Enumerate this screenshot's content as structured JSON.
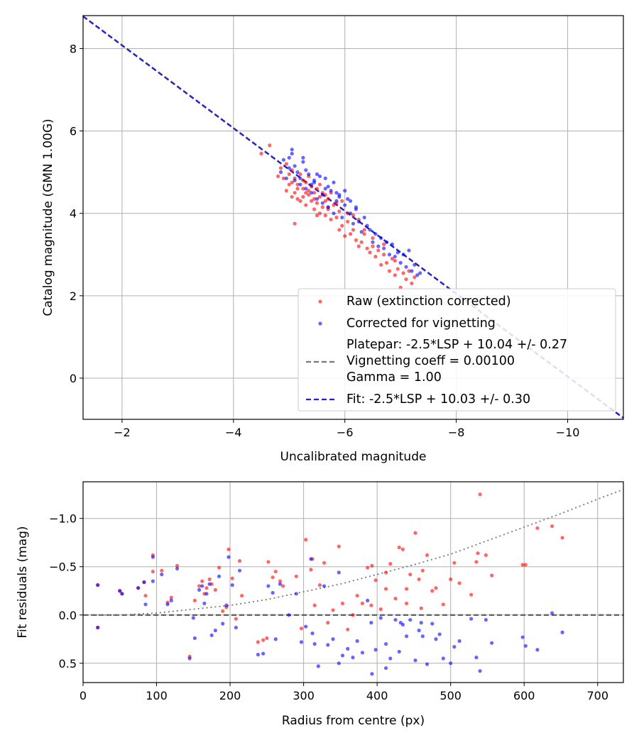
{
  "chart_data": [
    {
      "type": "scatter",
      "xlabel": "Uncalibrated magnitude",
      "ylabel": "Catalog magnitude (GMN 1.00G)",
      "xlim": [
        -1.3,
        -11.0
      ],
      "ylim": [
        8.8,
        -1.0
      ],
      "xticks": [
        -2,
        -4,
        -6,
        -8,
        -10
      ],
      "xtick_labels": [
        "−2",
        "−4",
        "−6",
        "−8",
        "−10"
      ],
      "yticks": [
        0,
        2,
        4,
        6,
        8
      ],
      "ytick_labels": [
        "0",
        "2",
        "4",
        "6",
        "8"
      ],
      "grid": true,
      "legend_position": "lower-right",
      "legend": [
        {
          "label": "Raw (extinction corrected)",
          "kind": "dot",
          "color": "#ff0000"
        },
        {
          "label": "Corrected for vignetting",
          "kind": "dot",
          "color": "#0000ff"
        },
        {
          "label": "Platepar: -2.5*LSP + 10.04 +/- 0.27",
          "label2": "Vignetting coeff = 0.00100",
          "label3": "Gamma = 1.00",
          "kind": "dashed",
          "color": "#777777"
        },
        {
          "label": "Fit: -2.5*LSP + 10.03 +/- 0.30",
          "kind": "dashed",
          "color": "#2222cc"
        }
      ],
      "lines": [
        {
          "name": "Platepar",
          "x": [
            -1.3,
            -11.0
          ],
          "y": [
            8.79,
            -0.96
          ],
          "color": "#777777",
          "style": "dashed"
        },
        {
          "name": "Fit",
          "x": [
            -1.3,
            -11.0
          ],
          "y": [
            8.78,
            -0.97
          ],
          "color": "#2222cc",
          "style": "dashed"
        }
      ],
      "series": [
        {
          "name": "Raw (extinction corrected)",
          "color": "#ff0000",
          "x": [
            -4.5,
            -4.65,
            -4.8,
            -4.85,
            -4.9,
            -4.95,
            -5.0,
            -5.0,
            -5.05,
            -5.05,
            -5.1,
            -5.1,
            -5.15,
            -5.15,
            -5.2,
            -5.2,
            -5.25,
            -5.25,
            -5.3,
            -5.3,
            -5.35,
            -5.35,
            -5.4,
            -5.4,
            -5.45,
            -5.45,
            -5.5,
            -5.5,
            -5.55,
            -5.55,
            -5.6,
            -5.6,
            -5.65,
            -5.65,
            -5.7,
            -5.7,
            -5.75,
            -5.8,
            -5.85,
            -5.9,
            -5.95,
            -6.0,
            -6.05,
            -6.1,
            -6.15,
            -6.2,
            -6.25,
            -6.3,
            -6.35,
            -6.4,
            -6.45,
            -6.5,
            -6.55,
            -6.6,
            -6.65,
            -6.7,
            -6.75,
            -6.8,
            -6.85,
            -6.9,
            -6.95,
            -7.0,
            -7.05,
            -7.1,
            -7.15,
            -7.2,
            -7.25,
            -4.95,
            -5.05,
            -5.15,
            -5.25,
            -5.35,
            -5.45,
            -5.55,
            -5.65,
            -5.75,
            -5.85,
            -5.95,
            -6.05,
            -6.15,
            -6.25,
            -6.35,
            -6.5,
            -6.7,
            -6.9,
            -5.1,
            -5.3,
            -5.5,
            -5.7,
            -5.9
          ],
          "y": [
            5.45,
            5.65,
            4.9,
            5.1,
            4.85,
            5.2,
            4.7,
            4.95,
            4.4,
            5.05,
            4.5,
            4.85,
            4.35,
            4.7,
            4.3,
            4.95,
            4.6,
            4.4,
            4.2,
            4.75,
            4.45,
            4.9,
            4.3,
            4.65,
            4.1,
            4.5,
            4.25,
            4.6,
            4.0,
            4.4,
            4.15,
            4.5,
            3.95,
            4.3,
            4.1,
            4.35,
            3.85,
            4.2,
            3.9,
            4.05,
            3.7,
            3.45,
            3.8,
            3.5,
            3.6,
            3.35,
            3.2,
            3.3,
            3.5,
            3.15,
            3.05,
            3.2,
            2.95,
            3.1,
            2.75,
            3.0,
            2.8,
            2.6,
            2.9,
            2.5,
            2.65,
            2.2,
            2.55,
            2.4,
            2.6,
            2.3,
            2.45,
            4.55,
            4.75,
            4.6,
            4.8,
            4.55,
            4.35,
            4.7,
            4.45,
            4.5,
            4.25,
            4.3,
            4.0,
            3.95,
            3.85,
            3.6,
            3.4,
            3.25,
            2.85,
            3.75,
            4.5,
            3.95,
            4.15,
            3.6
          ]
        },
        {
          "name": "Corrected for vignetting",
          "color": "#0000ff",
          "x": [
            -4.85,
            -4.9,
            -4.95,
            -5.0,
            -5.05,
            -5.1,
            -5.15,
            -5.2,
            -5.25,
            -5.3,
            -5.35,
            -5.4,
            -5.45,
            -5.5,
            -5.55,
            -5.6,
            -5.65,
            -5.7,
            -5.75,
            -5.8,
            -5.85,
            -5.9,
            -5.95,
            -6.0,
            -6.05,
            -6.1,
            -6.15,
            -6.2,
            -6.25,
            -6.3,
            -6.35,
            -6.4,
            -6.45,
            -6.5,
            -6.55,
            -6.6,
            -6.65,
            -6.7,
            -6.75,
            -6.8,
            -6.85,
            -6.9,
            -6.95,
            -7.0,
            -7.05,
            -7.1,
            -7.15,
            -7.2,
            -7.25,
            -7.3,
            -7.35,
            -5.0,
            -5.1,
            -5.2,
            -5.3,
            -5.4,
            -5.5,
            -5.6,
            -5.7,
            -5.8,
            -5.9,
            -6.0,
            -6.1,
            -6.2,
            -5.05,
            -5.25,
            -5.45,
            -5.65,
            -5.85
          ],
          "y": [
            5.0,
            5.3,
            4.85,
            5.1,
            5.55,
            4.8,
            5.0,
            4.7,
            5.25,
            4.6,
            4.95,
            4.5,
            4.75,
            4.35,
            4.9,
            4.25,
            4.6,
            4.15,
            4.55,
            4.0,
            4.3,
            4.45,
            3.9,
            4.2,
            4.35,
            4.0,
            3.75,
            4.1,
            3.8,
            3.55,
            3.9,
            3.7,
            3.6,
            3.3,
            3.5,
            3.2,
            3.4,
            3.15,
            3.3,
            3.0,
            3.25,
            2.95,
            3.05,
            2.8,
            3.0,
            2.7,
            3.1,
            2.6,
            2.75,
            2.5,
            2.55,
            5.35,
            5.15,
            4.85,
            5.05,
            4.7,
            4.95,
            4.45,
            4.65,
            4.75,
            4.4,
            4.55,
            4.3,
            4.15,
            5.45,
            5.35,
            4.8,
            4.85,
            4.5
          ]
        }
      ]
    },
    {
      "type": "scatter",
      "xlabel": "Radius from centre (px)",
      "ylabel": "Fit residuals (mag)",
      "xlim": [
        0,
        735
      ],
      "ylim": [
        -1.38,
        0.7
      ],
      "xticks": [
        0,
        100,
        200,
        300,
        400,
        500,
        600,
        700
      ],
      "xtick_labels": [
        "0",
        "100",
        "200",
        "300",
        "400",
        "500",
        "600",
        "700"
      ],
      "yticks": [
        0.5,
        0.0,
        -0.5,
        -1.0
      ],
      "ytick_labels": [
        "0.5",
        "0.0",
        "−0.5",
        "−1.0"
      ],
      "grid": true,
      "lines": [
        {
          "name": "zero",
          "x": [
            0,
            735
          ],
          "y": [
            0,
            0
          ],
          "color": "#555555",
          "style": "dashed"
        },
        {
          "name": "vignetting",
          "x": [
            0,
            50,
            100,
            150,
            200,
            250,
            300,
            350,
            400,
            450,
            500,
            550,
            600,
            650,
            700,
            735
          ],
          "y": [
            0.0,
            0.0,
            -0.02,
            -0.06,
            -0.1,
            -0.16,
            -0.24,
            -0.32,
            -0.42,
            -0.52,
            -0.63,
            -0.77,
            -0.91,
            -1.05,
            -1.2,
            -1.3
          ],
          "color": "#777777",
          "style": "dotted"
        }
      ],
      "series": [
        {
          "name": "Raw",
          "color": "#ff0000",
          "x": [
            20,
            20,
            50,
            53,
            75,
            83,
            85,
            95,
            95,
            107,
            115,
            120,
            128,
            145,
            152,
            158,
            162,
            165,
            168,
            172,
            175,
            180,
            185,
            190,
            195,
            198,
            203,
            208,
            213,
            216,
            238,
            245,
            252,
            258,
            262,
            268,
            272,
            290,
            297,
            303,
            310,
            315,
            322,
            328,
            333,
            340,
            348,
            353,
            360,
            367,
            373,
            380,
            387,
            393,
            398,
            405,
            412,
            418,
            425,
            430,
            435,
            440,
            445,
            452,
            457,
            462,
            468,
            475,
            480,
            490,
            500,
            505,
            512,
            528,
            535,
            540,
            548,
            556,
            598,
            602,
            618,
            638,
            652,
            312,
            392,
            412,
            460,
            537,
            440,
            250
          ],
          "y": [
            0.13,
            -0.31,
            -0.25,
            -0.22,
            -0.28,
            -0.34,
            -0.2,
            -0.45,
            -0.62,
            -0.46,
            -0.13,
            -0.18,
            -0.51,
            0.43,
            -0.15,
            -0.3,
            -0.35,
            -0.22,
            -0.28,
            -0.37,
            -0.32,
            -0.26,
            -0.49,
            -0.04,
            -0.08,
            -0.68,
            -0.38,
            0.04,
            -0.56,
            -0.2,
            0.28,
            0.26,
            -0.55,
            -0.39,
            -0.45,
            -0.35,
            -0.3,
            -0.4,
            0.14,
            -0.78,
            -0.47,
            -0.1,
            -0.31,
            -0.54,
            0.08,
            -0.05,
            -0.71,
            -0.12,
            0.15,
            0.0,
            -0.2,
            -0.12,
            -0.49,
            -0.51,
            -0.36,
            -0.06,
            -0.27,
            -0.53,
            -0.17,
            -0.7,
            -0.68,
            -0.27,
            -0.42,
            -0.85,
            -0.37,
            -0.46,
            -0.62,
            -0.25,
            -0.28,
            -0.11,
            -0.37,
            -0.54,
            -0.33,
            -0.21,
            -0.55,
            -1.25,
            -0.62,
            -0.41,
            -0.52,
            -0.52,
            -0.9,
            -0.92,
            -0.8,
            -0.58,
            -0.1,
            -0.44,
            -0.07,
            -0.64,
            -0.12,
            0.24
          ]
        },
        {
          "name": "Corrected",
          "color": "#0000ff",
          "x": [
            20,
            20,
            50,
            53,
            75,
            83,
            85,
            95,
            95,
            107,
            115,
            120,
            128,
            145,
            152,
            158,
            162,
            165,
            168,
            172,
            175,
            180,
            185,
            190,
            195,
            198,
            203,
            208,
            213,
            238,
            245,
            252,
            258,
            262,
            268,
            290,
            297,
            303,
            310,
            315,
            320,
            328,
            333,
            340,
            348,
            353,
            360,
            367,
            373,
            380,
            387,
            393,
            398,
            405,
            412,
            418,
            425,
            430,
            435,
            440,
            445,
            452,
            457,
            462,
            468,
            475,
            480,
            490,
            500,
            505,
            512,
            528,
            535,
            540,
            548,
            556,
            598,
            602,
            618,
            638,
            652,
            312,
            392,
            412,
            460,
            485,
            432,
            348,
            280,
            150
          ],
          "y": [
            0.13,
            -0.31,
            -0.25,
            -0.22,
            -0.28,
            -0.34,
            -0.11,
            -0.35,
            -0.6,
            -0.42,
            -0.11,
            -0.15,
            -0.48,
            0.45,
            0.24,
            -0.26,
            -0.3,
            -0.12,
            -0.22,
            -0.32,
            0.21,
            0.16,
            -0.4,
            0.09,
            -0.1,
            -0.6,
            -0.31,
            0.13,
            -0.46,
            0.41,
            0.4,
            -0.3,
            -0.23,
            0.25,
            -0.32,
            -0.22,
            0.28,
            0.12,
            -0.58,
            0.3,
            0.53,
            -0.3,
            0.31,
            0.25,
            0.5,
            0.42,
            0.35,
            0.44,
            0.27,
            0.39,
            -0.15,
            0.61,
            0.36,
            0.03,
            0.3,
            0.45,
            0.05,
            0.38,
            0.1,
            0.22,
            0.05,
            0.47,
            0.16,
            0.22,
            0.51,
            0.09,
            0.25,
            0.45,
            0.5,
            0.33,
            0.27,
            0.04,
            0.44,
            0.58,
            0.05,
            0.29,
            0.23,
            0.32,
            0.36,
            -0.02,
            0.18,
            0.19,
            0.08,
            0.55,
            0.08,
            0.2,
            0.08,
            -0.44,
            0.0,
            0.03
          ]
        }
      ]
    }
  ]
}
